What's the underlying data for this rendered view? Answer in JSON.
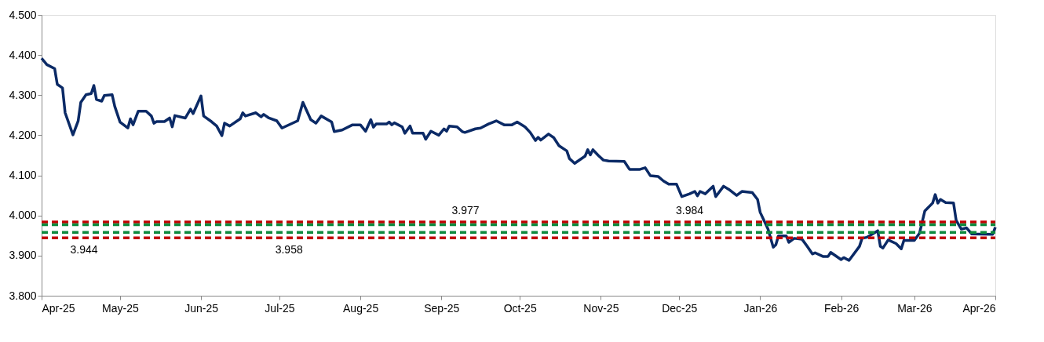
{
  "chart_data": {
    "type": "line",
    "grid": false,
    "marker": "none",
    "line_style": "solid",
    "xlim": [
      "2025-04-01",
      "2026-04-01"
    ],
    "xticks": [
      {
        "value": "2025-04-01",
        "label": "Apr-25"
      },
      {
        "value": "2025-05-01",
        "label": "May-25"
      },
      {
        "value": "2025-06-01",
        "label": "Jun-25"
      },
      {
        "value": "2025-07-01",
        "label": "Jul-25"
      },
      {
        "value": "2025-08-01",
        "label": "Aug-25"
      },
      {
        "value": "2025-09-01",
        "label": "Sep-25"
      },
      {
        "value": "2025-10-01",
        "label": "Oct-25"
      },
      {
        "value": "2025-11-01",
        "label": "Nov-25"
      },
      {
        "value": "2025-12-01",
        "label": "Dec-25"
      },
      {
        "value": "2026-01-01",
        "label": "Jan-26"
      },
      {
        "value": "2026-02-01",
        "label": "Feb-26"
      },
      {
        "value": "2026-03-01",
        "label": "Mar-26"
      },
      {
        "value": "2026-04-01",
        "label": "Apr-26"
      }
    ],
    "ylim": [
      3.8,
      4.5
    ],
    "yticks": [
      {
        "value": 3.8,
        "label": "3.800"
      },
      {
        "value": 3.9,
        "label": "3.900"
      },
      {
        "value": 4.0,
        "label": "4.000"
      },
      {
        "value": 4.1,
        "label": "4.100"
      },
      {
        "value": 4.2,
        "label": "4.200"
      },
      {
        "value": 4.3,
        "label": "4.300"
      },
      {
        "value": 4.4,
        "label": "4.400"
      },
      {
        "value": 4.5,
        "label": "4.500"
      }
    ],
    "ref_lines": [
      {
        "axis": "y",
        "value": 3.984,
        "label": "3.984",
        "color": "#c00000",
        "line_style": "dashed"
      },
      {
        "axis": "y",
        "value": 3.977,
        "label": "3.977",
        "color": "#0e8a3e",
        "line_style": "dashed"
      },
      {
        "axis": "y",
        "value": 3.958,
        "label": "3.958",
        "color": "#0e8a3e",
        "line_style": "dashed"
      },
      {
        "axis": "y",
        "value": 3.944,
        "label": "3.944",
        "color": "#c00000",
        "line_style": "dashed"
      }
    ],
    "series": [
      {
        "color": "#0b2a66",
        "x": [
          "2025-04-01",
          "2025-04-03",
          "2025-04-06",
          "2025-04-07",
          "2025-04-09",
          "2025-04-10",
          "2025-04-13",
          "2025-04-15",
          "2025-04-16",
          "2025-04-18",
          "2025-04-20",
          "2025-04-21",
          "2025-04-22",
          "2025-04-24",
          "2025-04-25",
          "2025-04-28",
          "2025-04-29",
          "2025-05-01",
          "2025-05-04",
          "2025-05-05",
          "2025-05-06",
          "2025-05-08",
          "2025-05-11",
          "2025-05-13",
          "2025-05-14",
          "2025-05-15",
          "2025-05-18",
          "2025-05-20",
          "2025-05-21",
          "2025-05-22",
          "2025-05-26",
          "2025-05-28",
          "2025-05-29",
          "2025-06-01",
          "2025-06-02",
          "2025-06-05",
          "2025-06-07",
          "2025-06-09",
          "2025-06-10",
          "2025-06-12",
          "2025-06-16",
          "2025-06-17",
          "2025-06-18",
          "2025-06-22",
          "2025-06-24",
          "2025-06-25",
          "2025-06-27",
          "2025-06-30",
          "2025-07-02",
          "2025-07-08",
          "2025-07-10",
          "2025-07-13",
          "2025-07-15",
          "2025-07-17",
          "2025-07-21",
          "2025-07-22",
          "2025-07-25",
          "2025-07-29",
          "2025-08-01",
          "2025-08-03",
          "2025-08-05",
          "2025-08-06",
          "2025-08-07",
          "2025-08-11",
          "2025-08-12",
          "2025-08-13",
          "2025-08-14",
          "2025-08-17",
          "2025-08-18",
          "2025-08-20",
          "2025-08-21",
          "2025-08-25",
          "2025-08-26",
          "2025-08-28",
          "2025-08-31",
          "2025-09-02",
          "2025-09-03",
          "2025-09-04",
          "2025-09-07",
          "2025-09-09",
          "2025-09-10",
          "2025-09-14",
          "2025-09-16",
          "2025-09-19",
          "2025-09-22",
          "2025-09-25",
          "2025-09-28",
          "2025-09-30",
          "2025-10-03",
          "2025-10-05",
          "2025-10-07",
          "2025-10-08",
          "2025-10-09",
          "2025-10-12",
          "2025-10-14",
          "2025-10-16",
          "2025-10-19",
          "2025-10-20",
          "2025-10-22",
          "2025-10-26",
          "2025-10-27",
          "2025-10-28",
          "2025-10-29",
          "2025-10-31",
          "2025-11-02",
          "2025-11-04",
          "2025-11-10",
          "2025-11-12",
          "2025-11-16",
          "2025-11-18",
          "2025-11-20",
          "2025-11-23",
          "2025-11-25",
          "2025-11-27",
          "2025-11-30",
          "2025-12-02",
          "2025-12-05",
          "2025-12-07",
          "2025-12-08",
          "2025-12-09",
          "2025-12-11",
          "2025-12-14",
          "2025-12-15",
          "2025-12-18",
          "2025-12-20",
          "2025-12-23",
          "2025-12-25",
          "2025-12-29",
          "2025-12-31",
          "2026-01-01",
          "2026-01-04",
          "2026-01-06",
          "2026-01-07",
          "2026-01-08",
          "2026-01-11",
          "2026-01-12",
          "2026-01-14",
          "2026-01-17",
          "2026-01-19",
          "2026-01-21",
          "2026-01-22",
          "2026-01-25",
          "2026-01-27",
          "2026-01-28",
          "2026-02-01",
          "2026-02-02",
          "2026-02-04",
          "2026-02-08",
          "2026-02-09",
          "2026-02-11",
          "2026-02-15",
          "2026-02-16",
          "2026-02-17",
          "2026-02-19",
          "2026-02-22",
          "2026-02-24",
          "2026-02-25",
          "2026-03-01",
          "2026-03-03",
          "2026-03-05",
          "2026-03-08",
          "2026-03-09",
          "2026-03-10",
          "2026-03-11",
          "2026-03-13",
          "2026-03-16",
          "2026-03-17",
          "2026-03-19",
          "2026-03-21",
          "2026-03-23",
          "2026-03-31",
          "2026-04-01"
        ],
        "values": [
          4.392,
          4.376,
          4.366,
          4.327,
          4.318,
          4.256,
          4.201,
          4.236,
          4.282,
          4.301,
          4.304,
          4.324,
          4.289,
          4.285,
          4.299,
          4.301,
          4.272,
          4.233,
          4.218,
          4.241,
          4.226,
          4.26,
          4.26,
          4.248,
          4.23,
          4.234,
          4.234,
          4.243,
          4.221,
          4.249,
          4.243,
          4.265,
          4.254,
          4.298,
          4.248,
          4.234,
          4.223,
          4.199,
          4.23,
          4.223,
          4.241,
          4.256,
          4.248,
          4.256,
          4.246,
          4.252,
          4.243,
          4.236,
          4.218,
          4.236,
          4.282,
          4.239,
          4.23,
          4.248,
          4.233,
          4.209,
          4.213,
          4.226,
          4.226,
          4.21,
          4.239,
          4.22,
          4.228,
          4.228,
          4.233,
          4.226,
          4.231,
          4.221,
          4.205,
          4.223,
          4.205,
          4.205,
          4.19,
          4.21,
          4.2,
          4.216,
          4.21,
          4.223,
          4.221,
          4.209,
          4.207,
          4.216,
          4.218,
          4.228,
          4.236,
          4.226,
          4.226,
          4.233,
          4.221,
          4.207,
          4.187,
          4.195,
          4.188,
          4.203,
          4.194,
          4.174,
          4.161,
          4.142,
          4.13,
          4.148,
          4.164,
          4.151,
          4.164,
          4.15,
          4.138,
          4.136,
          4.135,
          4.115,
          4.115,
          4.119,
          4.099,
          4.097,
          4.086,
          4.078,
          4.078,
          4.047,
          4.054,
          4.06,
          4.049,
          4.06,
          4.054,
          4.073,
          4.047,
          4.073,
          4.065,
          4.05,
          4.06,
          4.057,
          4.04,
          4.008,
          3.966,
          3.921,
          3.927,
          3.949,
          3.949,
          3.933,
          3.943,
          3.941,
          3.923,
          3.904,
          3.907,
          3.898,
          3.898,
          3.908,
          3.89,
          3.895,
          3.888,
          3.923,
          3.943,
          3.946,
          3.962,
          3.923,
          3.919,
          3.939,
          3.93,
          3.917,
          3.938,
          3.938,
          3.956,
          4.011,
          4.031,
          4.052,
          4.031,
          4.04,
          4.032,
          4.031,
          3.988,
          3.966,
          3.969,
          3.954,
          3.953,
          3.971
        ]
      }
    ]
  }
}
